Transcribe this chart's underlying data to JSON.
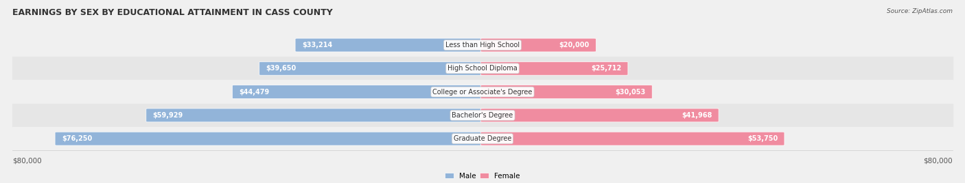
{
  "title": "EARNINGS BY SEX BY EDUCATIONAL ATTAINMENT IN CASS COUNTY",
  "source": "Source: ZipAtlas.com",
  "categories": [
    "Less than High School",
    "High School Diploma",
    "College or Associate's Degree",
    "Bachelor's Degree",
    "Graduate Degree"
  ],
  "male_values": [
    33214,
    39650,
    44479,
    59929,
    76250
  ],
  "female_values": [
    20000,
    25712,
    30053,
    41968,
    53750
  ],
  "male_color": "#92b4d9",
  "female_color": "#f08ca0",
  "max_value": 80000,
  "axis_label_left": "$80,000",
  "axis_label_right": "$80,000",
  "title_fontsize": 9,
  "label_fontsize": 7.5,
  "value_fontsize": 7,
  "category_fontsize": 7
}
